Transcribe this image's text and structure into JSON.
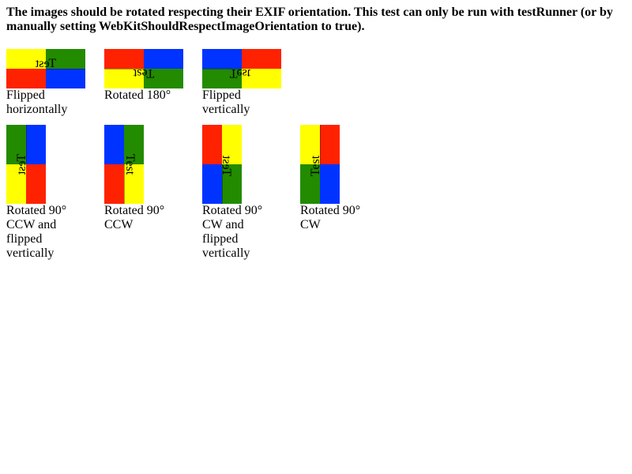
{
  "heading": "The images should be rotated respecting their EXIF orientation. This test can only be run with testRunner (or by manually setting WebKitShouldRespectImageOrientation to true).",
  "colors": {
    "yellow": "#ffff00",
    "green": "#228b00",
    "red": "#ff2200",
    "blue": "#0033ff"
  },
  "images": [
    {
      "label": "Flipped horizontally",
      "word": "Test",
      "quadrants": [
        "yellow",
        "green",
        "red",
        "blue"
      ]
    },
    {
      "label": "Rotated 180°",
      "word": "Test",
      "quadrants": [
        "red",
        "blue",
        "yellow",
        "green"
      ]
    },
    {
      "label": "Flipped vertically",
      "word": "Test",
      "quadrants": [
        "blue",
        "red",
        "green",
        "yellow"
      ]
    },
    {
      "label": "Rotated 90° CCW and flipped vertically",
      "word": "Test",
      "quadrants": [
        "green",
        "blue",
        "yellow",
        "red"
      ]
    },
    {
      "label": "Rotated 90° CCW",
      "word": "Test",
      "quadrants": [
        "blue",
        "green",
        "red",
        "yellow"
      ]
    },
    {
      "label": "Rotated 90° CW and flipped vertically",
      "word": "Test",
      "quadrants": [
        "red",
        "yellow",
        "blue",
        "green"
      ]
    },
    {
      "label": "Rotated 90° CW",
      "word": "Test",
      "quadrants": [
        "yellow",
        "red",
        "green",
        "blue"
      ]
    }
  ]
}
